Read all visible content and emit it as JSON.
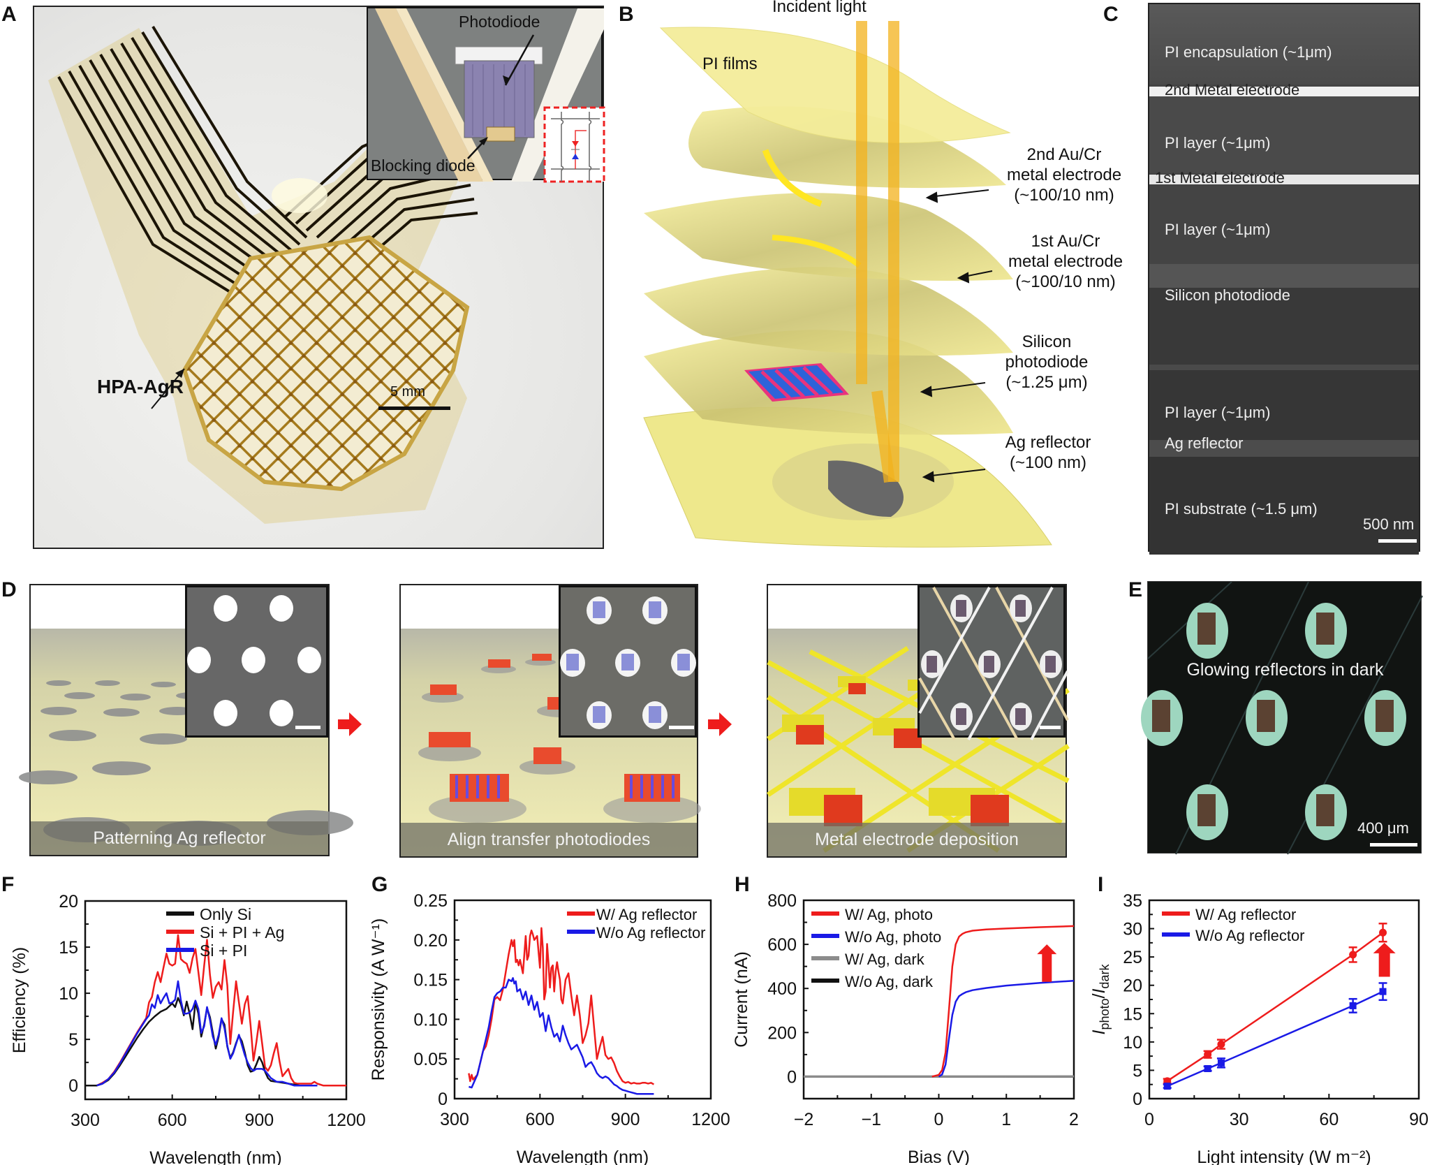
{
  "figure": {
    "panel_letters": [
      "A",
      "B",
      "C",
      "D",
      "E",
      "F",
      "G",
      "H",
      "I"
    ]
  },
  "panel_a": {
    "device_label": "HPA-AgR",
    "scale_bar": "5 mm",
    "inset_labels": {
      "photodiode": "Photodiode",
      "blocking_diode": "Blocking diode"
    }
  },
  "panel_b": {
    "incident_light": "Incident light",
    "pi_films": "PI films",
    "labels": [
      {
        "lines": [
          "2nd Au/Cr",
          "metal electrode",
          "(~100/10 nm)"
        ]
      },
      {
        "lines": [
          "1st Au/Cr",
          "metal electrode",
          "(~100/10 nm)"
        ]
      },
      {
        "lines": [
          "Silicon",
          "photodiode",
          "(~1.25 μm)"
        ]
      },
      {
        "lines": [
          "Ag reflector",
          "(~100 nm)"
        ]
      }
    ]
  },
  "panel_c": {
    "layers": [
      "PI encapsulation (~1μm)",
      "2nd Metal electrode",
      "PI layer (~1μm)",
      "1st Metal electrode",
      "PI layer (~1μm)",
      "Silicon photodiode",
      "PI layer (~1μm)",
      "Ag reflector",
      "PI substrate (~1.5 μm)"
    ],
    "scale_bar": "500 nm"
  },
  "panel_d": {
    "steps": [
      "Patterning Ag reflector",
      "Align transfer photodiodes",
      "Metal electrode deposition"
    ]
  },
  "panel_e": {
    "caption": "Glowing reflectors in dark",
    "scale_bar": "400 μm"
  },
  "colors": {
    "red": "#ee1c1c",
    "blue": "#1a1ae6",
    "black": "#111111",
    "gray": "#8c8c8c"
  },
  "chart_data": [
    {
      "id": "F",
      "type": "line",
      "xlabel": "Wavelength (nm)",
      "ylabel": "Efficiency (%)",
      "xlim": [
        300,
        1200
      ],
      "ylim": [
        -1.5,
        20
      ],
      "xticks": [
        300,
        600,
        900,
        1200
      ],
      "yticks": [
        0,
        5,
        10,
        15,
        20
      ],
      "legend_position": "top-right",
      "series": [
        {
          "name": "Only Si",
          "color": "#111111",
          "x": [
            300,
            340,
            360,
            380,
            400,
            420,
            440,
            460,
            480,
            500,
            520,
            540,
            560,
            580,
            590,
            600,
            610,
            620,
            630,
            640,
            650,
            660,
            670,
            680,
            690,
            700,
            710,
            720,
            730,
            740,
            750,
            760,
            770,
            780,
            790,
            800,
            810,
            820,
            830,
            840,
            850,
            860,
            870,
            880,
            890,
            900,
            910,
            920,
            930,
            940,
            960,
            980,
            1000,
            1020,
            1040,
            1060,
            1080,
            1100
          ],
          "y": [
            0,
            0,
            0.2,
            0.6,
            1.3,
            2.2,
            3.2,
            4.2,
            5.2,
            6.1,
            6.9,
            7.5,
            8.0,
            8.3,
            8.6,
            8.9,
            8.5,
            9.5,
            8.8,
            7.6,
            9.1,
            7.8,
            6.1,
            9.0,
            7.8,
            5.3,
            6.6,
            8.4,
            7.4,
            5.7,
            4.0,
            5.3,
            7.2,
            6.6,
            4.2,
            3.0,
            3.6,
            4.6,
            5.4,
            4.8,
            3.6,
            2.2,
            1.5,
            1.6,
            2.3,
            3.1,
            2.5,
            1.5,
            0.8,
            0.5,
            0.4,
            0.3,
            0.2,
            0.1,
            0,
            0,
            0,
            0
          ]
        },
        {
          "name": "Si + PI + Ag",
          "color": "#ee1c1c",
          "x": [
            300,
            340,
            360,
            380,
            400,
            420,
            440,
            460,
            480,
            500,
            510,
            520,
            530,
            540,
            550,
            560,
            570,
            580,
            590,
            600,
            610,
            620,
            630,
            640,
            650,
            660,
            670,
            680,
            690,
            700,
            710,
            720,
            730,
            740,
            750,
            760,
            770,
            780,
            790,
            800,
            810,
            820,
            830,
            840,
            850,
            860,
            870,
            880,
            890,
            900,
            910,
            920,
            930,
            940,
            950,
            960,
            970,
            980,
            990,
            1000,
            1010,
            1020,
            1030,
            1040,
            1060,
            1080,
            1090,
            1100,
            1120,
            1200
          ],
          "y": [
            0,
            0,
            0.3,
            0.7,
            1.5,
            2.5,
            3.6,
            4.7,
            5.8,
            6.8,
            7.3,
            9.0,
            9.6,
            11.2,
            12.3,
            11.2,
            12.8,
            14.3,
            13.2,
            13.0,
            13.2,
            16.3,
            13.7,
            13.4,
            13.2,
            12.2,
            13.8,
            14.8,
            12.3,
            9.8,
            13.0,
            15.8,
            12.0,
            9.5,
            10.7,
            11.2,
            10.4,
            13.6,
            10.8,
            4.5,
            8.0,
            11.3,
            9.0,
            6.7,
            8.8,
            9.7,
            6.5,
            2.7,
            4.7,
            7.0,
            4.5,
            2.0,
            1.6,
            2.2,
            3.5,
            4.6,
            2.6,
            1.0,
            1.4,
            1.8,
            0.8,
            0.3,
            0.2,
            0.2,
            0.2,
            0.2,
            0.4,
            0.2,
            0,
            0
          ]
        },
        {
          "name": "Si + PI",
          "color": "#1a1ae6",
          "x": [
            340,
            360,
            380,
            400,
            420,
            440,
            460,
            480,
            500,
            510,
            520,
            530,
            540,
            550,
            560,
            570,
            580,
            590,
            600,
            610,
            620,
            630,
            640,
            650,
            660,
            670,
            680,
            690,
            700,
            710,
            720,
            730,
            740,
            750,
            760,
            770,
            780,
            790,
            800,
            810,
            820,
            830,
            840,
            850,
            860,
            870,
            880,
            890,
            900,
            910,
            920,
            930,
            940,
            960,
            980,
            1000,
            1020,
            1040,
            1060,
            1080,
            1100
          ],
          "y": [
            0,
            0.2,
            0.7,
            1.4,
            2.4,
            3.5,
            4.6,
            5.7,
            6.7,
            7.2,
            7.6,
            8.8,
            8.4,
            9.8,
            8.9,
            9.5,
            10.0,
            8.9,
            9.0,
            9.3,
            11.3,
            9.2,
            7.8,
            7.8,
            7.9,
            8.3,
            9.2,
            8.3,
            5.7,
            6.4,
            8.5,
            7.1,
            5.3,
            4.4,
            5.5,
            7.3,
            6.2,
            4.3,
            2.9,
            3.5,
            4.5,
            5.5,
            4.4,
            3.3,
            2.5,
            1.9,
            1.6,
            1.8,
            1.8,
            1.8,
            1.6,
            1.2,
            0.8,
            0.4,
            0.4,
            0.2,
            0,
            0,
            0,
            0,
            0
          ]
        }
      ]
    },
    {
      "id": "G",
      "type": "line",
      "xlabel": "Wavelength (nm)",
      "ylabel": "Responsivity (A W⁻¹)",
      "xlim": [
        300,
        1200
      ],
      "ylim": [
        0,
        0.25
      ],
      "xticks": [
        300,
        600,
        900,
        1200
      ],
      "yticks": [
        0,
        0.05,
        0.1,
        0.15,
        0.2,
        0.25
      ],
      "ytick_labels": [
        "0",
        "0.05",
        "0.10",
        "0.15",
        "0.20",
        "0.25"
      ],
      "legend_position": "top-right",
      "series": [
        {
          "name": "W/ Ag reflector",
          "color": "#ee1c1c",
          "x": [
            350,
            355,
            360,
            365,
            370,
            380,
            390,
            400,
            410,
            420,
            430,
            440,
            450,
            460,
            470,
            480,
            490,
            500,
            505,
            510,
            515,
            520,
            525,
            530,
            540,
            550,
            555,
            560,
            565,
            570,
            575,
            580,
            590,
            600,
            605,
            610,
            615,
            620,
            625,
            630,
            635,
            640,
            645,
            650,
            655,
            660,
            665,
            670,
            675,
            680,
            690,
            700,
            710,
            720,
            730,
            740,
            750,
            760,
            770,
            780,
            790,
            800,
            810,
            820,
            830,
            840,
            850,
            860,
            870,
            880,
            890,
            900,
            910,
            920,
            930,
            940,
            950,
            960,
            970,
            980,
            990,
            1000
          ],
          "y": [
            0.032,
            0.022,
            0.03,
            0.024,
            0.026,
            0.03,
            0.045,
            0.06,
            0.066,
            0.08,
            0.1,
            0.125,
            0.128,
            0.124,
            0.138,
            0.16,
            0.182,
            0.2,
            0.192,
            0.2,
            0.172,
            0.175,
            0.168,
            0.175,
            0.158,
            0.205,
            0.175,
            0.18,
            0.205,
            0.212,
            0.207,
            0.2,
            0.205,
            0.165,
            0.215,
            0.19,
            0.125,
            0.135,
            0.195,
            0.17,
            0.14,
            0.165,
            0.168,
            0.135,
            0.16,
            0.172,
            0.16,
            0.15,
            0.125,
            0.12,
            0.15,
            0.158,
            0.13,
            0.105,
            0.13,
            0.105,
            0.07,
            0.08,
            0.095,
            0.13,
            0.09,
            0.05,
            0.065,
            0.078,
            0.055,
            0.05,
            0.052,
            0.045,
            0.035,
            0.028,
            0.022,
            0.02,
            0.021,
            0.019,
            0.02,
            0.019,
            0.019,
            0.02,
            0.02,
            0.019,
            0.02,
            0.018
          ]
        },
        {
          "name": "W/o Ag reflector",
          "color": "#1a1ae6",
          "x": [
            350,
            360,
            370,
            380,
            390,
            400,
            410,
            420,
            430,
            440,
            450,
            460,
            470,
            480,
            490,
            500,
            505,
            510,
            515,
            520,
            530,
            540,
            550,
            560,
            570,
            580,
            590,
            600,
            610,
            620,
            630,
            640,
            650,
            660,
            670,
            680,
            690,
            700,
            710,
            720,
            730,
            740,
            750,
            760,
            770,
            780,
            790,
            800,
            810,
            820,
            830,
            840,
            850,
            860,
            870,
            880,
            890,
            900,
            910,
            920,
            930,
            940,
            950,
            960,
            970,
            980,
            990,
            1000
          ],
          "y": [
            0.015,
            0.014,
            0.022,
            0.03,
            0.045,
            0.06,
            0.075,
            0.09,
            0.11,
            0.128,
            0.133,
            0.135,
            0.14,
            0.14,
            0.15,
            0.148,
            0.152,
            0.145,
            0.148,
            0.135,
            0.138,
            0.125,
            0.135,
            0.118,
            0.13,
            0.112,
            0.122,
            0.103,
            0.108,
            0.085,
            0.105,
            0.09,
            0.078,
            0.082,
            0.072,
            0.092,
            0.08,
            0.07,
            0.062,
            0.065,
            0.068,
            0.06,
            0.052,
            0.04,
            0.044,
            0.046,
            0.04,
            0.032,
            0.028,
            0.026,
            0.028,
            0.026,
            0.022,
            0.018,
            0.016,
            0.013,
            0.011,
            0.01,
            0.009,
            0.008,
            0.007,
            0.006,
            0.006,
            0.006,
            0.006,
            0.006,
            0.006,
            0.006
          ]
        }
      ]
    },
    {
      "id": "H",
      "type": "line",
      "xlabel": "Bias (V)",
      "ylabel": "Current (nA)",
      "xlim": [
        -2,
        2
      ],
      "ylim": [
        -100,
        800
      ],
      "xticks": [
        -2,
        -1,
        0,
        1,
        2
      ],
      "xtick_labels": [
        "−2",
        "−1",
        "0",
        "1",
        "2"
      ],
      "yticks": [
        0,
        200,
        400,
        600,
        800
      ],
      "legend_position": "top-left",
      "annotation": "red up-arrow indicating photocurrent increase",
      "series": [
        {
          "name": "W/ Ag, photo",
          "color": "#ee1c1c",
          "x": [
            -0.1,
            0,
            0.05,
            0.1,
            0.15,
            0.2,
            0.25,
            0.3,
            0.35,
            0.4,
            0.5,
            0.7,
            1.0,
            1.5,
            2.0
          ],
          "y": [
            0,
            8,
            30,
            110,
            300,
            500,
            600,
            635,
            648,
            655,
            662,
            668,
            672,
            678,
            683
          ]
        },
        {
          "name": "W/o Ag, photo",
          "color": "#1a1ae6",
          "x": [
            0,
            0.05,
            0.1,
            0.15,
            0.2,
            0.25,
            0.3,
            0.35,
            0.4,
            0.5,
            0.7,
            1.0,
            1.5,
            2.0
          ],
          "y": [
            0,
            10,
            55,
            170,
            280,
            340,
            365,
            375,
            383,
            392,
            402,
            413,
            425,
            435
          ]
        },
        {
          "name": "W/ Ag, dark",
          "color": "#8c8c8c",
          "x": [
            -2,
            2
          ],
          "y": [
            0,
            1
          ]
        },
        {
          "name": "W/o Ag, dark",
          "color": "#111111",
          "x": [
            -2,
            2
          ],
          "y": [
            0,
            0
          ]
        }
      ]
    },
    {
      "id": "I",
      "type": "scatter",
      "xlabel": "Light intensity (W m⁻²)",
      "ylabel": "Iphoto/Idark",
      "xlim": [
        0,
        90
      ],
      "ylim": [
        0,
        35
      ],
      "xticks": [
        0,
        30,
        60,
        90
      ],
      "yticks": [
        0,
        5,
        10,
        15,
        20,
        25,
        30,
        35
      ],
      "legend_position": "top-left",
      "annotation": "red up-arrow indicating ratio increase",
      "series": [
        {
          "name": "W/ Ag reflector",
          "color": "#ee1c1c",
          "marker": "circle",
          "x": [
            6,
            19.5,
            24,
            68,
            78
          ],
          "y": [
            3.1,
            7.8,
            9.6,
            25.4,
            29.3
          ],
          "err": [
            0.4,
            0.6,
            0.8,
            1.3,
            1.6
          ]
        },
        {
          "name": "W/o Ag reflector",
          "color": "#1a1ae6",
          "marker": "square",
          "x": [
            6,
            19.5,
            24,
            68,
            78
          ],
          "y": [
            2.2,
            5.3,
            6.3,
            16.4,
            18.9
          ],
          "err": [
            0.3,
            0.4,
            0.8,
            1.2,
            1.5
          ]
        }
      ]
    }
  ]
}
